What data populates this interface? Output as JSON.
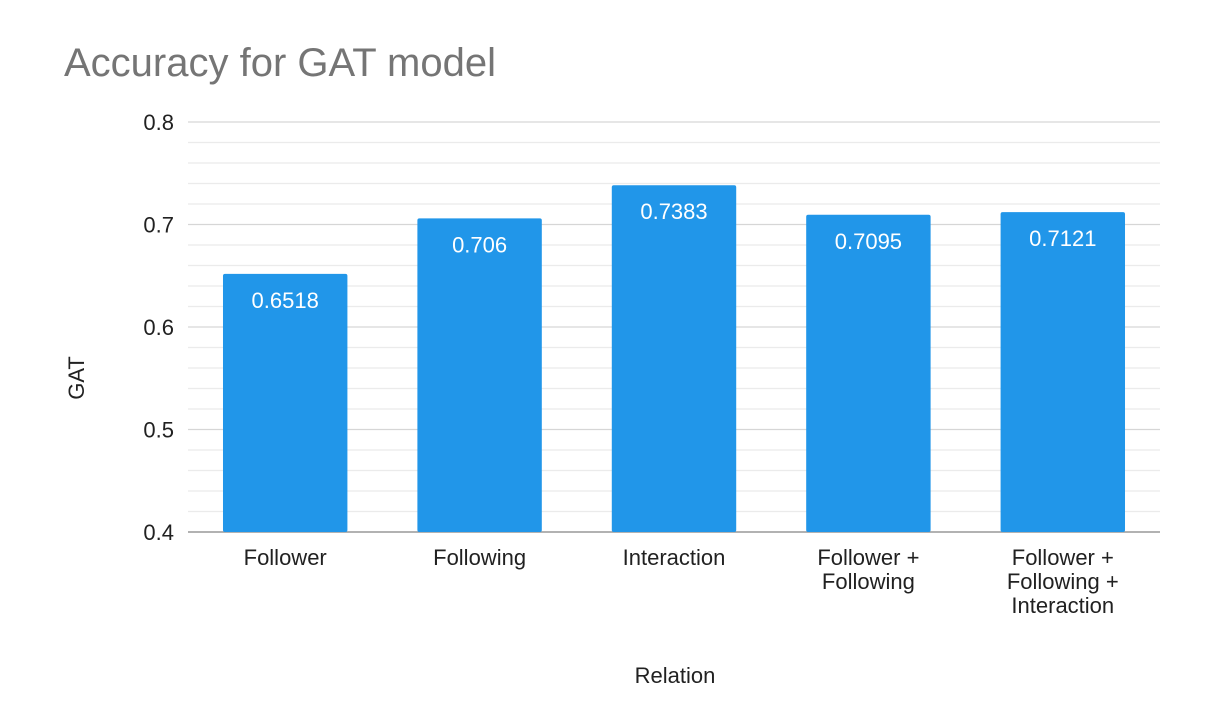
{
  "chart_data": {
    "type": "bar",
    "title": "Accuracy for GAT model",
    "xlabel": "Relation",
    "ylabel": "GAT",
    "ylim": [
      0.4,
      0.8
    ],
    "major_ticks": [
      0.4,
      0.5,
      0.6,
      0.7,
      0.8
    ],
    "minor_step": 0.02,
    "tick_labels": [
      "0.4",
      "0.5",
      "0.6",
      "0.7",
      "0.8"
    ],
    "categories": [
      [
        "Follower"
      ],
      [
        "Following"
      ],
      [
        "Interaction"
      ],
      [
        "Follower +",
        "Following"
      ],
      [
        "Follower +",
        "Following +",
        "Interaction"
      ]
    ],
    "values": [
      0.6518,
      0.706,
      0.7383,
      0.7095,
      0.7121
    ],
    "value_labels": [
      "0.6518",
      "0.706",
      "0.7383",
      "0.7095",
      "0.7121"
    ],
    "grid": true,
    "legend": "none",
    "colors": {
      "bar": "#2196e9",
      "title": "#757575",
      "text": "#212121",
      "grid": "#e0e0e0",
      "axis": "#999999",
      "label": "#ffffff"
    }
  }
}
